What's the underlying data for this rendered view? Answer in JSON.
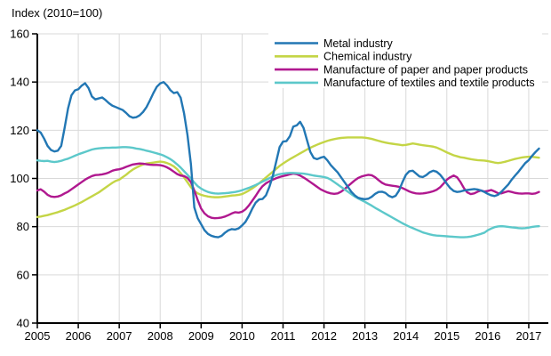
{
  "title": "Index (2010=100)",
  "chart_data": {
    "type": "line",
    "title": "Index (2010=100)",
    "x_unit": "year",
    "x_start": 2005,
    "points_per_year": 12,
    "x_end": 2017.25,
    "xlim": [
      2005,
      2017.48
    ],
    "ylim": [
      40,
      160
    ],
    "y_ticks": [
      40,
      60,
      80,
      100,
      120,
      140,
      160
    ],
    "x_ticks": [
      2005,
      2006,
      2007,
      2008,
      2009,
      2010,
      2011,
      2012,
      2013,
      2014,
      2015,
      2016,
      2017
    ],
    "grid": true,
    "legend_position": "top-center-inside",
    "axis_color": "#000000",
    "grid_color": "#d9d9d9",
    "series": [
      {
        "name": "Metal industry",
        "color": "#2277b4",
        "values": [
          120,
          119,
          116.5,
          113.5,
          111.8,
          111.2,
          111.5,
          113.5,
          121,
          129,
          134.5,
          136.5,
          137,
          138.5,
          139.5,
          137.5,
          134,
          132.8,
          133.2,
          133.6,
          132.5,
          131.2,
          130.2,
          129.6,
          129,
          128.4,
          127.2,
          125.8,
          125.2,
          125.4,
          126.2,
          127.6,
          129.6,
          132.4,
          135.4,
          138,
          139.4,
          140,
          138.6,
          136.6,
          135.4,
          135.8,
          133.5,
          127,
          118,
          106,
          88,
          83.5,
          81,
          78.5,
          77,
          76.2,
          75.8,
          75.6,
          76.2,
          77.5,
          78.5,
          79,
          78.8,
          79.3,
          80.5,
          82,
          84.5,
          87.5,
          90,
          91.3,
          91.5,
          93,
          96.5,
          101,
          107,
          113,
          115.3,
          115.5,
          117.5,
          121.5,
          122,
          123.5,
          121,
          116,
          111,
          108.5,
          108,
          108.6,
          109,
          107.5,
          105.5,
          104,
          102.5,
          100.5,
          98.5,
          96.5,
          94.5,
          93,
          92,
          91.6,
          91.4,
          91.6,
          92.4,
          93.6,
          94.4,
          94.5,
          94,
          92.8,
          92.2,
          92.8,
          95,
          98.5,
          101.5,
          103,
          103.2,
          102,
          100.8,
          100.6,
          101.4,
          102.6,
          103.2,
          102.8,
          101.6,
          99.8,
          97.8,
          96,
          94.8,
          94.4,
          94.6,
          95,
          95.2,
          95.4,
          95.6,
          95.4,
          95,
          94.4,
          93.6,
          93,
          92.7,
          93.2,
          94.5,
          96,
          97.5,
          99.5,
          101.2,
          102.8,
          104.6,
          106.4,
          107.6,
          109.4,
          111,
          112.4
        ]
      },
      {
        "name": "Chemical industry",
        "color": "#c4d546",
        "values": [
          84,
          84.2,
          84.5,
          84.8,
          85.2,
          85.6,
          86,
          86.5,
          87,
          87.6,
          88.2,
          88.8,
          89.5,
          90.2,
          91,
          91.8,
          92.6,
          93.4,
          94.2,
          95.2,
          96.2,
          97.2,
          98.2,
          99,
          99.5,
          100.5,
          101.5,
          102.7,
          103.7,
          104.5,
          105.2,
          105.8,
          106.2,
          106.4,
          106.6,
          106.8,
          107,
          106.8,
          106.4,
          105.8,
          105,
          103.8,
          102.2,
          100.4,
          98.4,
          96.4,
          94.8,
          93.8,
          93.2,
          92.8,
          92.5,
          92.3,
          92.2,
          92.2,
          92.3,
          92.5,
          92.7,
          92.9,
          93,
          93.2,
          93.5,
          94.2,
          95,
          95.9,
          96.9,
          98,
          99.2,
          100.4,
          101.6,
          102.8,
          104,
          105.2,
          106.2,
          107.1,
          108,
          108.8,
          109.6,
          110.4,
          111.2,
          112,
          112.7,
          113.4,
          114,
          114.6,
          115.1,
          115.6,
          116,
          116.3,
          116.6,
          116.8,
          116.9,
          117,
          117,
          117,
          117,
          117,
          116.9,
          116.7,
          116.4,
          116,
          115.6,
          115.2,
          114.9,
          114.6,
          114.4,
          114.2,
          114,
          113.8,
          113.9,
          114.2,
          114.5,
          114.3,
          114,
          113.8,
          113.6,
          113.4,
          113.2,
          112.8,
          112.2,
          111.5,
          110.8,
          110.2,
          109.6,
          109.2,
          108.8,
          108.6,
          108.3,
          108,
          107.8,
          107.6,
          107.5,
          107.4,
          107.2,
          106.9,
          106.6,
          106.4,
          106.6,
          106.9,
          107.3,
          107.7,
          108.1,
          108.4,
          108.7,
          108.9,
          109,
          109,
          108.8,
          108.6
        ]
      },
      {
        "name": "Manufacture of paper and paper products",
        "color": "#b0188f",
        "values": [
          95,
          95.5,
          94.5,
          93.2,
          92.5,
          92.3,
          92.5,
          93,
          93.8,
          94.5,
          95.5,
          96.5,
          97.5,
          98.5,
          99.5,
          100.3,
          101,
          101.4,
          101.5,
          101.7,
          102,
          102.5,
          103.2,
          103.6,
          103.8,
          104.2,
          104.8,
          105.3,
          105.8,
          106,
          106.2,
          106.1,
          105.9,
          105.7,
          105.6,
          105.6,
          105.5,
          105.2,
          104.6,
          103.8,
          102.8,
          101.8,
          101.2,
          101,
          100.2,
          98.5,
          95,
          91,
          87.5,
          85.5,
          84.3,
          83.7,
          83.5,
          83.6,
          83.8,
          84.2,
          84.8,
          85.5,
          86,
          85.8,
          86.2,
          87.2,
          88.8,
          90.8,
          92.8,
          95,
          96.8,
          98,
          98.8,
          99.5,
          100.1,
          100.6,
          101,
          101.3,
          101.7,
          102,
          101.8,
          101.2,
          100.4,
          99.5,
          98.5,
          97.5,
          96.5,
          95.5,
          94.8,
          94.2,
          93.8,
          93.6,
          93.8,
          94.5,
          95.5,
          96.8,
          98,
          99.2,
          100.2,
          100.8,
          101.2,
          101.5,
          101.3,
          100.5,
          99.3,
          98.2,
          97.5,
          97.2,
          97,
          96.8,
          96.5,
          96,
          95.3,
          94.6,
          94.1,
          93.8,
          93.7,
          93.8,
          94,
          94.3,
          94.7,
          95.3,
          96.3,
          97.8,
          99.5,
          100.5,
          101.2,
          100.5,
          98.5,
          96,
          94.2,
          93.5,
          93.8,
          94.5,
          95,
          94.6,
          94.8,
          95.2,
          94.6,
          93.9,
          93.8,
          94.3,
          94.7,
          94.4,
          94,
          93.8,
          93.7,
          93.8,
          93.8,
          93.6,
          93.8,
          94.4
        ]
      },
      {
        "name": "Manufacture of textiles and textile products",
        "color": "#5cc8ca",
        "values": [
          107.5,
          107.3,
          107.2,
          107.3,
          107,
          106.8,
          107,
          107.3,
          107.8,
          108.2,
          108.8,
          109.4,
          110,
          110.5,
          111,
          111.5,
          112,
          112.3,
          112.5,
          112.6,
          112.7,
          112.7,
          112.8,
          112.8,
          112.9,
          113,
          113,
          112.9,
          112.7,
          112.4,
          112.2,
          111.9,
          111.5,
          111.2,
          110.8,
          110.4,
          110,
          109.5,
          108.8,
          108,
          107,
          105.8,
          104.5,
          103,
          101.5,
          100,
          98.3,
          96.8,
          95.8,
          95,
          94.4,
          94,
          93.8,
          93.7,
          93.8,
          93.9,
          94,
          94.2,
          94.4,
          94.7,
          95.1,
          95.6,
          96.1,
          96.7,
          97.3,
          98,
          98.7,
          99.4,
          100.1,
          100.8,
          101.4,
          101.8,
          102,
          102.2,
          102.3,
          102.3,
          102.2,
          102.1,
          102,
          101.8,
          101.5,
          101.2,
          101,
          100.8,
          100.6,
          100.2,
          99.5,
          98.5,
          97.5,
          96.5,
          95.5,
          94.5,
          93.5,
          92.5,
          91.7,
          91,
          90.3,
          89.5,
          88.7,
          87.8,
          87,
          86.2,
          85.4,
          84.6,
          83.8,
          83,
          82.2,
          81.4,
          80.7,
          80,
          79.4,
          78.8,
          78.2,
          77.6,
          77.2,
          76.8,
          76.5,
          76.3,
          76.2,
          76.1,
          76,
          75.9,
          75.8,
          75.7,
          75.6,
          75.6,
          75.7,
          75.9,
          76.2,
          76.6,
          77,
          77.5,
          78.5,
          79.2,
          79.8,
          80.1,
          80.2,
          80.1,
          79.9,
          79.7,
          79.6,
          79.4,
          79.3,
          79.4,
          79.6,
          79.9,
          80.1,
          80.2
        ]
      }
    ]
  }
}
